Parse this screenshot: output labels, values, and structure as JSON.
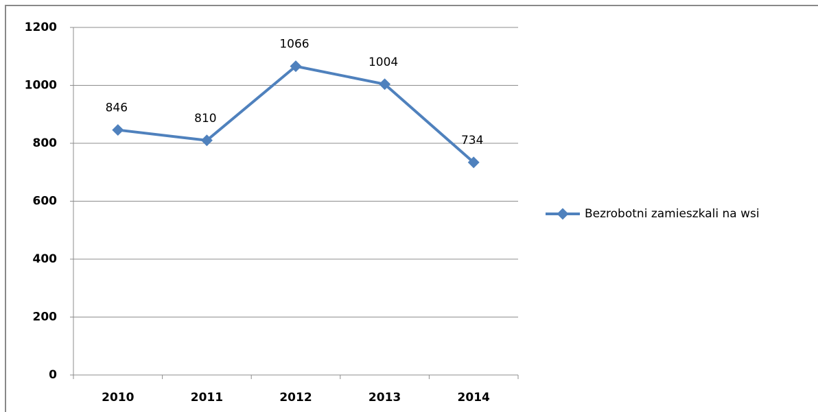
{
  "chart_data": {
    "type": "line",
    "categories": [
      "2010",
      "2011",
      "2012",
      "2013",
      "2014"
    ],
    "series": [
      {
        "name": "Bezrobotni zamieszkali na wsi",
        "color": "#4f81bd",
        "values": [
          846,
          810,
          1066,
          1004,
          734
        ]
      }
    ],
    "ylim": [
      0,
      1200
    ],
    "yticks": [
      0,
      200,
      400,
      600,
      800,
      1000,
      1200
    ],
    "grid": true,
    "legend": "right"
  }
}
